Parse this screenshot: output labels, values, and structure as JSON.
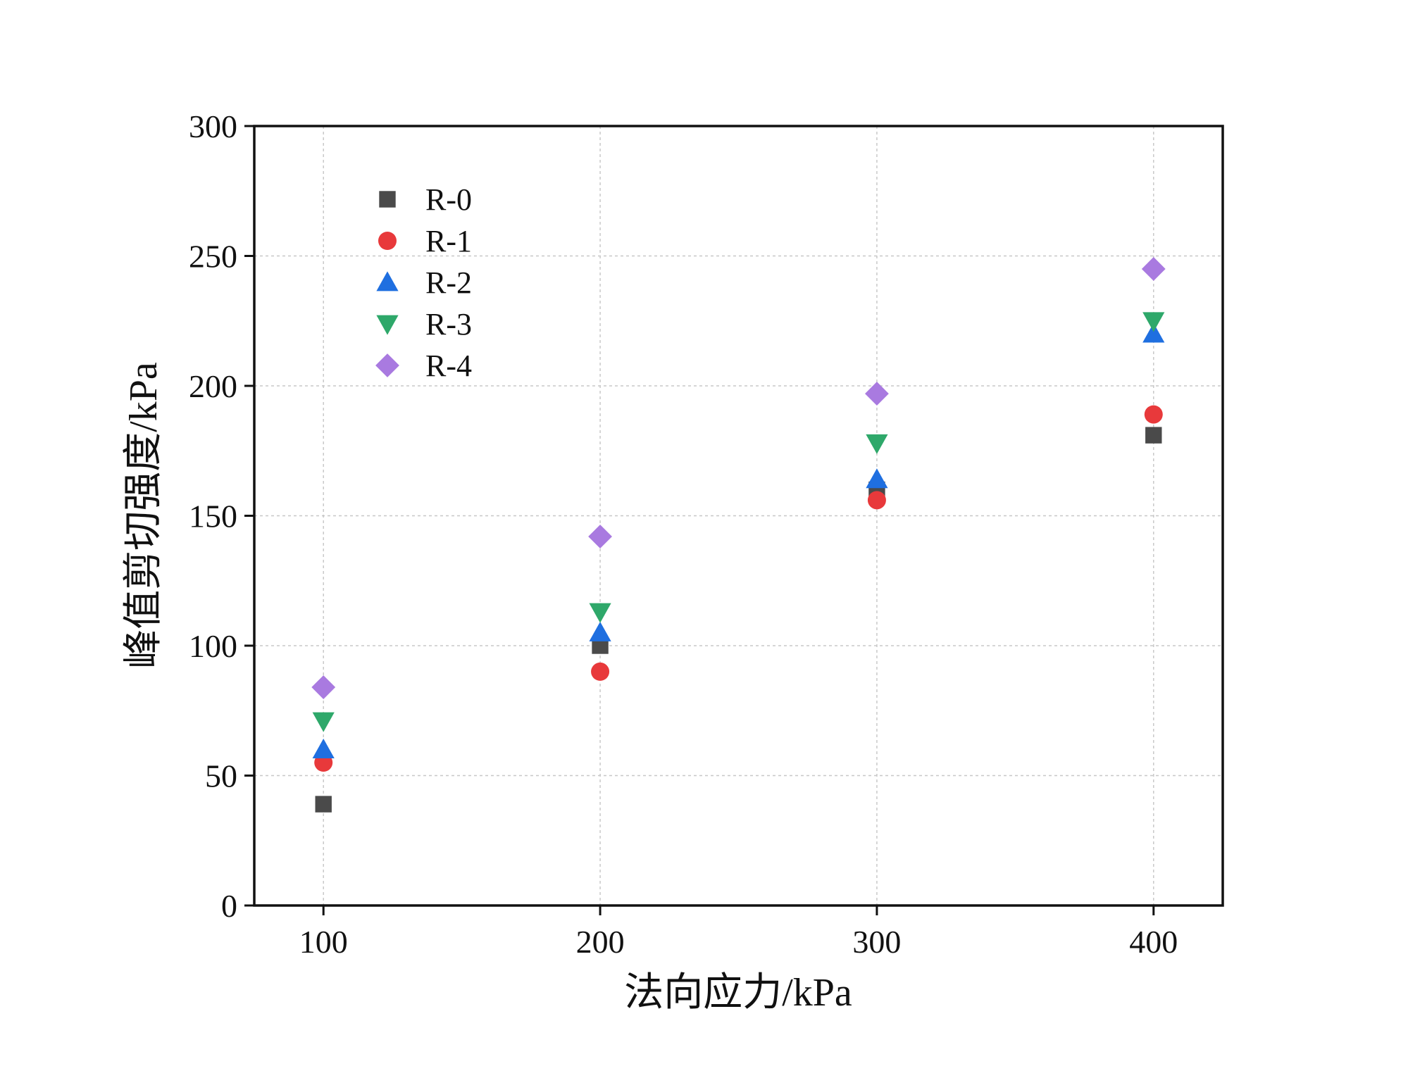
{
  "chart_data": {
    "type": "scatter",
    "title": "",
    "xlabel": "法向应力/kPa",
    "ylabel": "峰值剪切强度/kPa",
    "x": [
      100,
      200,
      300,
      400
    ],
    "xticks": [
      "100",
      "200",
      "300",
      "400"
    ],
    "yticks": [
      "0",
      "50",
      "100",
      "150",
      "200",
      "250",
      "300"
    ],
    "xlim": [
      75,
      425
    ],
    "ylim": [
      0,
      300
    ],
    "grid": true,
    "legend_position": "top-left",
    "series": [
      {
        "name": "R-0",
        "marker": "square",
        "color": "#4a4a4a",
        "values": [
          39,
          100,
          160,
          181
        ]
      },
      {
        "name": "R-1",
        "marker": "circle",
        "color": "#e8393b",
        "values": [
          55,
          90,
          156,
          189
        ]
      },
      {
        "name": "R-2",
        "marker": "triangle-up",
        "color": "#1f6fe0",
        "values": [
          60,
          105,
          164,
          220
        ]
      },
      {
        "name": "R-3",
        "marker": "triangle-down",
        "color": "#2ea86a",
        "values": [
          71,
          113,
          178,
          225
        ]
      },
      {
        "name": "R-4",
        "marker": "diamond",
        "color": "#a97ae0",
        "values": [
          84,
          142,
          197,
          245
        ]
      }
    ]
  }
}
